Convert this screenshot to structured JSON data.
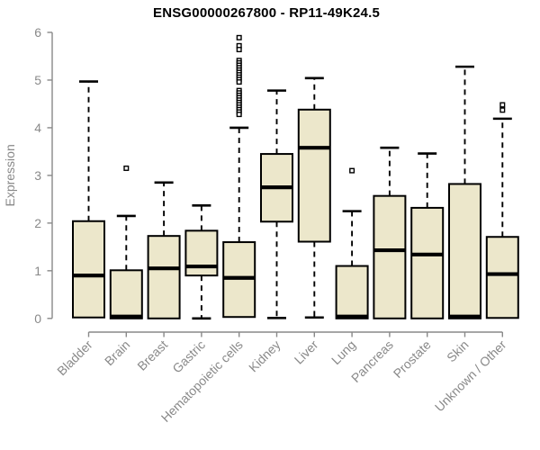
{
  "header": {
    "title": "ENSG00000267800 - RP11-49K24.5"
  },
  "chart_data": {
    "type": "boxplot",
    "title": "ENSG00000267800 - RP11-49K24.5",
    "xlabel": "",
    "ylabel": "Expression",
    "ylim": [
      0,
      6
    ],
    "yticks": [
      0,
      1,
      2,
      3,
      4,
      5,
      6
    ],
    "grid": false,
    "legend": "none",
    "categories": [
      "Bladder",
      "Brain",
      "Breast",
      "Gastric",
      "Hematopoietic cells",
      "Kidney",
      "Liver",
      "Lung",
      "Pancreas",
      "Prostate",
      "Skin",
      "Unknown / Other"
    ],
    "series": [
      {
        "name": "Bladder",
        "whisker_low": 0.02,
        "q1": 0.02,
        "median": 0.9,
        "q3": 2.04,
        "whisker_high": 4.97,
        "outliers": []
      },
      {
        "name": "Brain",
        "whisker_low": 0.0,
        "q1": 0.0,
        "median": 0.04,
        "q3": 1.01,
        "whisker_high": 2.15,
        "outliers": [
          3.15
        ]
      },
      {
        "name": "Breast",
        "whisker_low": 0.0,
        "q1": 0.0,
        "median": 1.05,
        "q3": 1.73,
        "whisker_high": 2.85,
        "outliers": []
      },
      {
        "name": "Gastric",
        "whisker_low": 0.0,
        "q1": 0.9,
        "median": 1.09,
        "q3": 1.84,
        "whisker_high": 2.37,
        "outliers": []
      },
      {
        "name": "Hematopoietic cells",
        "whisker_low": 0.03,
        "q1": 0.03,
        "median": 0.85,
        "q3": 1.6,
        "whisker_high": 4.0,
        "outliers": [
          5.89,
          5.72,
          5.64,
          5.41,
          5.36,
          5.31,
          5.26,
          5.21,
          5.16,
          5.11,
          5.06,
          5.01,
          4.96,
          4.78,
          4.73,
          4.68,
          4.63,
          4.58,
          4.53,
          4.48,
          4.43,
          4.38,
          4.33,
          4.28
        ]
      },
      {
        "name": "Kidney",
        "whisker_low": 0.01,
        "q1": 2.03,
        "median": 2.75,
        "q3": 3.45,
        "whisker_high": 4.78,
        "outliers": []
      },
      {
        "name": "Liver",
        "whisker_low": 0.02,
        "q1": 1.61,
        "median": 3.58,
        "q3": 4.38,
        "whisker_high": 5.04,
        "outliers": []
      },
      {
        "name": "Lung",
        "whisker_low": 0.0,
        "q1": 0.0,
        "median": 0.04,
        "q3": 1.1,
        "whisker_high": 2.25,
        "outliers": [
          3.1
        ]
      },
      {
        "name": "Pancreas",
        "whisker_low": 0.0,
        "q1": 0.0,
        "median": 1.43,
        "q3": 2.57,
        "whisker_high": 3.58,
        "outliers": []
      },
      {
        "name": "Prostate",
        "whisker_low": 0.0,
        "q1": 0.0,
        "median": 1.34,
        "q3": 2.32,
        "whisker_high": 3.46,
        "outliers": []
      },
      {
        "name": "Skin",
        "whisker_low": 0.0,
        "q1": 0.0,
        "median": 0.04,
        "q3": 2.82,
        "whisker_high": 5.28,
        "outliers": []
      },
      {
        "name": "Unknown / Other",
        "whisker_low": 0.0,
        "q1": 0.01,
        "median": 0.93,
        "q3": 1.71,
        "whisker_high": 4.19,
        "outliers": [
          4.48,
          4.37
        ]
      }
    ],
    "colors": {
      "box_fill": "#ECE7CB",
      "box_stroke": "#000000",
      "median": "#000000",
      "axis": "#898989",
      "title": "#000000",
      "background": "#FFFFFF"
    }
  }
}
